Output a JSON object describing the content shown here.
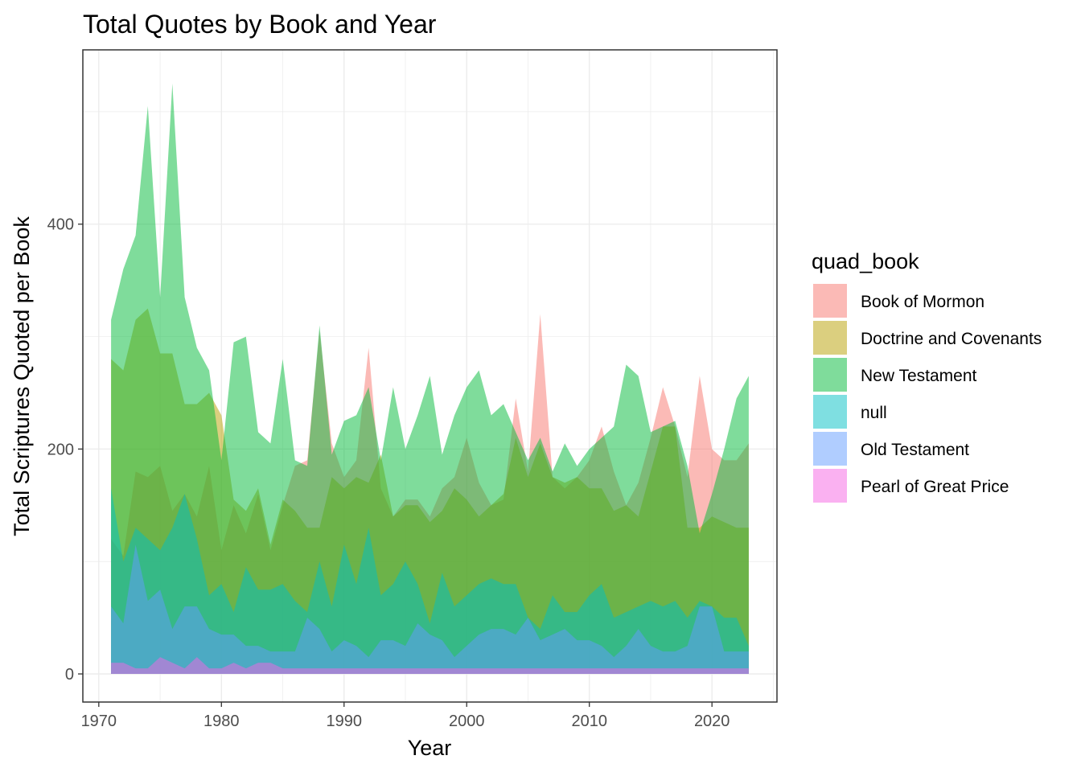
{
  "chart_data": {
    "type": "area",
    "title": "Total Quotes by Book and Year",
    "xlabel": "Year",
    "ylabel": "Total Scriptures Quoted per Book",
    "xlim": [
      1968.7,
      2025.3
    ],
    "ylim": [
      -25,
      555
    ],
    "xticks": [
      1970,
      1980,
      1990,
      2000,
      2010,
      2020
    ],
    "yticks": [
      0,
      200,
      400
    ],
    "yminor": [
      100,
      300,
      500
    ],
    "grid": true,
    "legend_title": "quad_book",
    "legend_position": "right",
    "x": [
      1971,
      1972,
      1973,
      1974,
      1975,
      1976,
      1977,
      1978,
      1979,
      1980,
      1981,
      1982,
      1983,
      1984,
      1985,
      1986,
      1987,
      1988,
      1989,
      1990,
      1991,
      1992,
      1993,
      1994,
      1995,
      1996,
      1997,
      1998,
      1999,
      2000,
      2001,
      2002,
      2003,
      2004,
      2005,
      2006,
      2007,
      2008,
      2009,
      2010,
      2011,
      2012,
      2013,
      2014,
      2015,
      2016,
      2017,
      2018,
      2019,
      2020,
      2021,
      2022,
      2023
    ],
    "series": [
      {
        "name": "Book of Mormon",
        "color": "#F8766D",
        "values": [
          120,
          105,
          180,
          175,
          185,
          145,
          160,
          140,
          185,
          110,
          150,
          125,
          160,
          110,
          150,
          185,
          190,
          305,
          205,
          175,
          190,
          290,
          165,
          140,
          155,
          155,
          140,
          165,
          175,
          210,
          170,
          150,
          155,
          245,
          180,
          320,
          175,
          165,
          175,
          190,
          220,
          180,
          150,
          170,
          210,
          255,
          220,
          175,
          265,
          200,
          190,
          190,
          205
        ]
      },
      {
        "name": "Doctrine and Covenants",
        "color": "#B79F00",
        "values": [
          280,
          270,
          315,
          325,
          285,
          285,
          240,
          240,
          250,
          230,
          155,
          145,
          165,
          115,
          155,
          145,
          130,
          130,
          175,
          165,
          175,
          170,
          195,
          140,
          150,
          150,
          135,
          145,
          165,
          155,
          140,
          150,
          160,
          210,
          175,
          205,
          175,
          170,
          175,
          165,
          165,
          145,
          150,
          140,
          180,
          220,
          220,
          130,
          130,
          140,
          135,
          130,
          130
        ]
      },
      {
        "name": "New Testament",
        "color": "#00BA38",
        "values": [
          315,
          360,
          390,
          505,
          335,
          525,
          335,
          290,
          270,
          190,
          295,
          300,
          215,
          205,
          280,
          190,
          185,
          310,
          195,
          225,
          230,
          255,
          190,
          255,
          200,
          230,
          265,
          195,
          230,
          255,
          270,
          230,
          240,
          215,
          190,
          210,
          180,
          205,
          185,
          200,
          210,
          220,
          275,
          265,
          215,
          220,
          225,
          185,
          125,
          160,
          200,
          245,
          265
        ]
      },
      {
        "name": "null",
        "color": "#00BFC4",
        "values": [
          165,
          100,
          130,
          120,
          110,
          130,
          160,
          120,
          70,
          80,
          55,
          95,
          75,
          75,
          80,
          65,
          55,
          100,
          60,
          115,
          80,
          130,
          70,
          80,
          100,
          80,
          45,
          90,
          60,
          70,
          80,
          85,
          80,
          80,
          50,
          40,
          70,
          55,
          55,
          70,
          80,
          50,
          55,
          60,
          65,
          60,
          65,
          50,
          65,
          60,
          50,
          50,
          25
        ]
      },
      {
        "name": "Old Testament",
        "color": "#619CFF",
        "values": [
          60,
          45,
          115,
          65,
          75,
          40,
          60,
          60,
          40,
          35,
          35,
          25,
          25,
          20,
          20,
          20,
          50,
          40,
          20,
          30,
          25,
          15,
          30,
          30,
          25,
          45,
          35,
          30,
          15,
          25,
          35,
          40,
          40,
          35,
          50,
          30,
          35,
          40,
          30,
          30,
          25,
          15,
          25,
          40,
          25,
          20,
          20,
          25,
          60,
          60,
          20,
          20,
          20
        ]
      },
      {
        "name": "Pearl of Great Price",
        "color": "#F564E3",
        "values": [
          10,
          10,
          5,
          5,
          15,
          10,
          5,
          15,
          5,
          5,
          10,
          5,
          10,
          10,
          5,
          5,
          5,
          5,
          5,
          5,
          5,
          5,
          5,
          5,
          5,
          5,
          5,
          5,
          5,
          5,
          5,
          5,
          5,
          5,
          5,
          5,
          5,
          5,
          5,
          5,
          5,
          5,
          5,
          5,
          5,
          5,
          5,
          5,
          5,
          5,
          5,
          5,
          5
        ]
      }
    ]
  }
}
